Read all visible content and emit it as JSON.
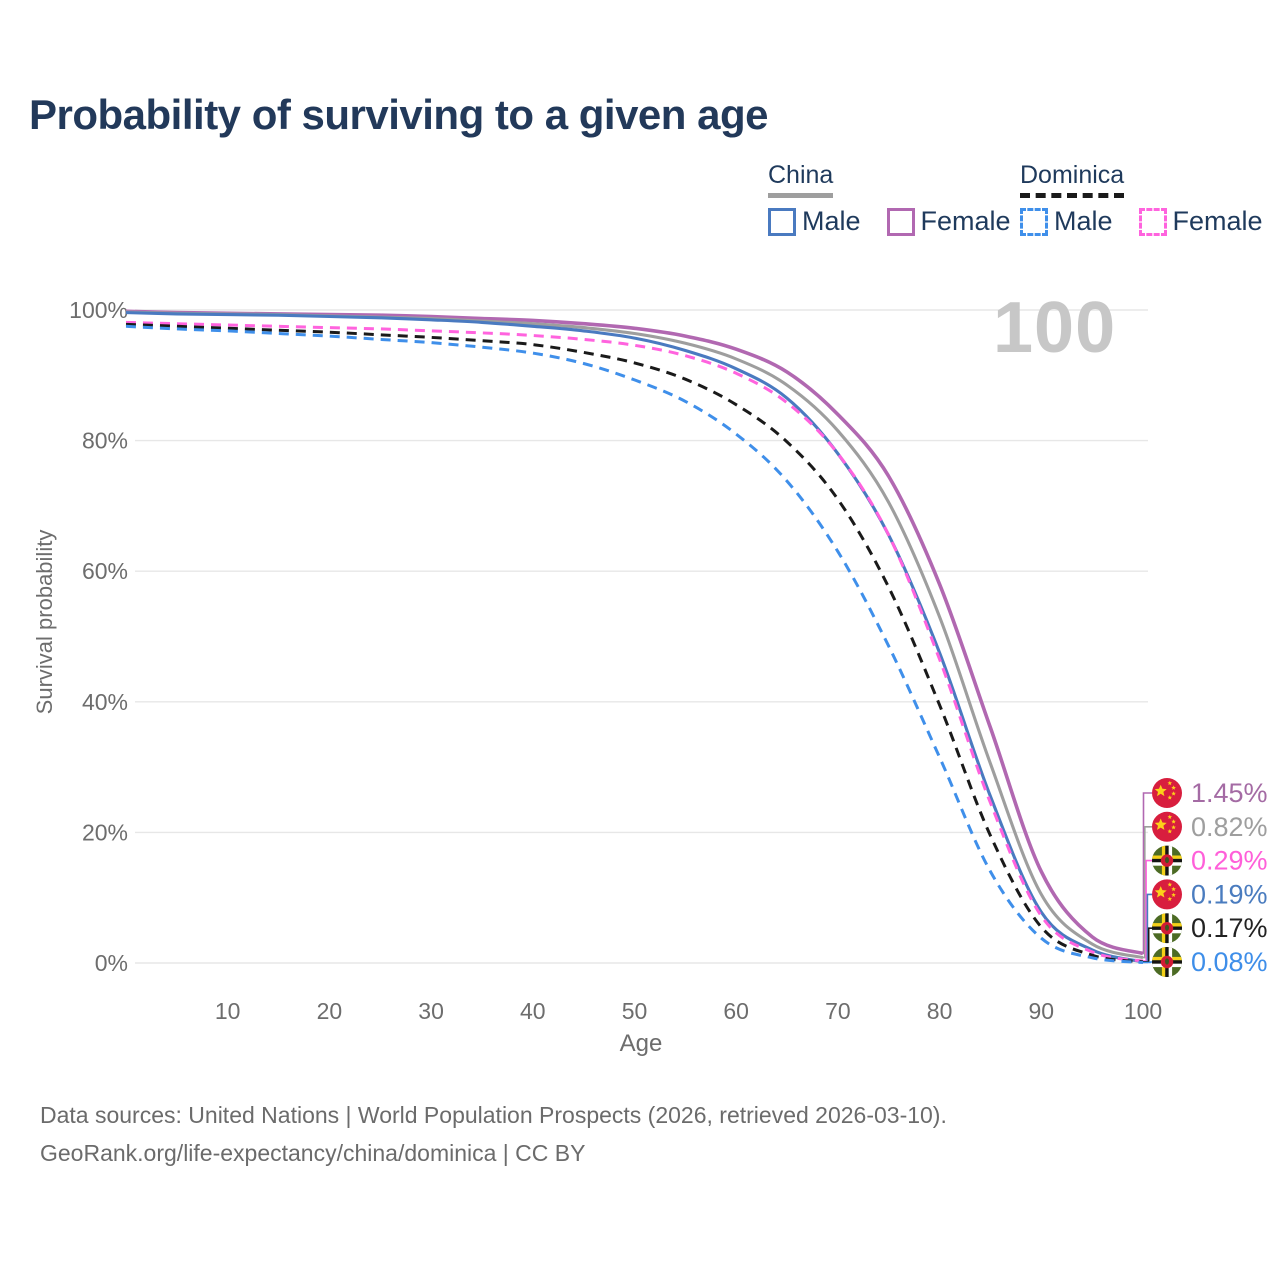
{
  "title": "Probability of surviving to a given age",
  "watermark": "100",
  "legend": {
    "groups": [
      {
        "label": "China",
        "line_style": "solid",
        "underline_color": "#9e9e9e",
        "items": [
          {
            "label": "Male",
            "color": "#4a7ac0"
          },
          {
            "label": "Female",
            "color": "#b168b1"
          }
        ]
      },
      {
        "label": "Dominica",
        "line_style": "dashed",
        "underline_color": "#1a1a1a",
        "items": [
          {
            "label": "Male",
            "color": "#3f8fea"
          },
          {
            "label": "Female",
            "color": "#ff63de"
          }
        ]
      }
    ]
  },
  "axes": {
    "x_label": "Age",
    "y_label": "Survival probability"
  },
  "footer": {
    "line1": "Data sources: United Nations | World Population Prospects (2026, retrieved 2026-03-10).",
    "line2": "GeoRank.org/life-expectancy/china/dominica | CC BY"
  },
  "chart_data": {
    "type": "line",
    "title": "Probability of surviving to a given age",
    "xlabel": "Age",
    "ylabel": "Survival probability",
    "xlim": [
      0,
      100
    ],
    "ylim": [
      0,
      100
    ],
    "x_ticks": [
      10,
      20,
      30,
      40,
      50,
      60,
      70,
      80,
      90,
      100
    ],
    "y_ticks": [
      0,
      20,
      40,
      60,
      80,
      100
    ],
    "y_tick_suffix": "%",
    "grid": "horizontal",
    "legend_position": "top-right",
    "x": [
      0,
      5,
      10,
      15,
      20,
      25,
      30,
      35,
      40,
      45,
      50,
      55,
      60,
      65,
      70,
      75,
      80,
      85,
      90,
      95,
      100
    ],
    "series": [
      {
        "name": "China Female",
        "country": "China",
        "sex": "Female",
        "style": "solid",
        "color": "#b168b1",
        "label_color": "#a46ba4",
        "flag": "china",
        "end_label": "1.45%",
        "values": [
          99.8,
          99.6,
          99.5,
          99.4,
          99.3,
          99.2,
          99.0,
          98.7,
          98.4,
          97.9,
          97.2,
          96.0,
          94.0,
          90.5,
          84.0,
          74.5,
          58.0,
          36.0,
          14.0,
          4.0,
          1.45
        ]
      },
      {
        "name": "China Both sexes",
        "country": "China",
        "sex": "Both",
        "style": "solid",
        "color": "#9e9e9e",
        "label_color": "#9e9e9e",
        "flag": "china",
        "end_label": "0.82%",
        "values": [
          99.7,
          99.5,
          99.4,
          99.3,
          99.1,
          98.9,
          98.7,
          98.3,
          97.9,
          97.3,
          96.4,
          94.9,
          92.5,
          88.5,
          81.5,
          70.5,
          53.0,
          30.5,
          10.5,
          2.9,
          0.82
        ]
      },
      {
        "name": "China Male",
        "country": "China",
        "sex": "Male",
        "style": "solid",
        "color": "#4a7ac0",
        "label_color": "#4a7cbf",
        "flag": "china",
        "end_label": "0.19%",
        "values": [
          99.6,
          99.4,
          99.3,
          99.2,
          99.0,
          98.8,
          98.5,
          98.1,
          97.5,
          96.8,
          95.7,
          93.8,
          91.0,
          86.5,
          78.0,
          65.5,
          47.5,
          25.5,
          7.8,
          2.0,
          0.19
        ]
      },
      {
        "name": "Dominica Female",
        "country": "Dominica",
        "sex": "Female",
        "style": "dashed",
        "color": "#ff63de",
        "label_color": "#ff5fd9",
        "flag": "dominica",
        "end_label": "0.29%",
        "values": [
          98.1,
          97.9,
          97.7,
          97.5,
          97.3,
          97.1,
          96.8,
          96.5,
          96.1,
          95.5,
          94.6,
          93.0,
          90.3,
          85.8,
          78.0,
          65.5,
          46.5,
          24.5,
          7.2,
          1.7,
          0.29
        ]
      },
      {
        "name": "Dominica Both sexes",
        "country": "Dominica",
        "sex": "Both",
        "style": "dashed",
        "color": "#1a1a1a",
        "label_color": "#222222",
        "flag": "dominica",
        "end_label": "0.17%",
        "values": [
          97.8,
          97.5,
          97.2,
          96.9,
          96.6,
          96.2,
          95.8,
          95.3,
          94.7,
          93.5,
          91.9,
          89.4,
          85.5,
          79.8,
          71.0,
          57.5,
          39.5,
          19.5,
          5.5,
          1.2,
          0.17
        ]
      },
      {
        "name": "Dominica Male",
        "country": "Dominica",
        "sex": "Male",
        "style": "dashed",
        "color": "#3f8fea",
        "label_color": "#3e8ee9",
        "flag": "dominica",
        "end_label": "0.08%",
        "values": [
          97.5,
          97.1,
          96.8,
          96.4,
          96.0,
          95.5,
          95.0,
          94.3,
          93.4,
          91.8,
          89.3,
          86.0,
          81.0,
          73.8,
          63.0,
          48.5,
          31.5,
          14.0,
          3.8,
          0.8,
          0.08
        ]
      }
    ]
  }
}
